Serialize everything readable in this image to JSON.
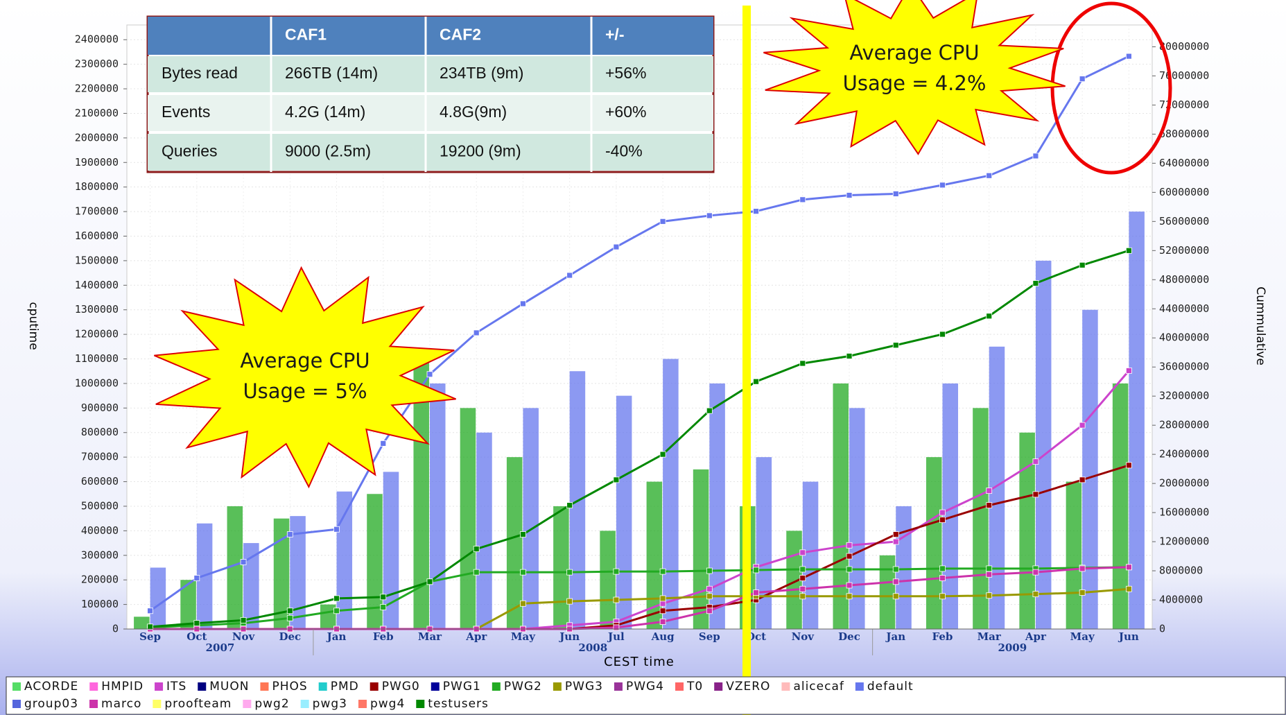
{
  "chart_data": {
    "type": "combo",
    "y_label": "cputime",
    "y2_label": "Cummulative",
    "x_label": "CEST time",
    "categories": [
      "Sep",
      "Oct",
      "Nov",
      "Dec",
      "Jan",
      "Feb",
      "Mar",
      "Apr",
      "May",
      "Jun",
      "Jul",
      "Aug",
      "Sep",
      "Oct",
      "Nov",
      "Dec",
      "Jan",
      "Feb",
      "Mar",
      "Apr",
      "May",
      "Jun"
    ],
    "years": [
      "2007",
      "2008",
      "2009"
    ],
    "year_months": [
      4,
      12,
      6
    ],
    "ylim": [
      0,
      2460000
    ],
    "yticks": [
      0,
      100000,
      200000,
      300000,
      400000,
      500000,
      600000,
      700000,
      800000,
      900000,
      1000000,
      1100000,
      1200000,
      1300000,
      1400000,
      1500000,
      1600000,
      1700000,
      1800000,
      1900000,
      2000000,
      2100000,
      2200000,
      2300000,
      2400000
    ],
    "y2lim": [
      0,
      83000000
    ],
    "y2ticks": [
      0,
      4000000,
      8000000,
      12000000,
      16000000,
      20000000,
      24000000,
      28000000,
      32000000,
      36000000,
      40000000,
      44000000,
      48000000,
      52000000,
      56000000,
      60000000,
      64000000,
      68000000,
      72000000,
      76000000,
      80000000
    ],
    "grid": true,
    "series": [
      {
        "name": "ACORDE",
        "color": "#55dd66"
      },
      {
        "name": "HMPID",
        "color": "#ff66dd"
      },
      {
        "name": "ITS",
        "color": "#cc44cc",
        "axis": "y2",
        "values": [
          0,
          0,
          0,
          0,
          0,
          0,
          0,
          0,
          0,
          500000,
          1000000,
          3500000,
          5500000,
          8500000,
          10500000,
          11500000,
          12000000,
          16000000,
          19000000,
          23000000,
          28000000,
          35500000
        ]
      },
      {
        "name": "MUON",
        "color": "#000080"
      },
      {
        "name": "PHOS",
        "color": "#ff7755"
      },
      {
        "name": "PMD",
        "color": "#22cccc"
      },
      {
        "name": "PWG0",
        "color": "#990000",
        "axis": "y2",
        "values": [
          0,
          0,
          0,
          0,
          0,
          0,
          0,
          0,
          0,
          0,
          500000,
          2500000,
          3000000,
          4000000,
          7000000,
          10000000,
          13000000,
          15000000,
          17000000,
          18500000,
          20500000,
          22500000
        ]
      },
      {
        "name": "PWG1",
        "color": "#000099"
      },
      {
        "name": "PWG2",
        "color": "#22aa22",
        "axis": "y2",
        "values": [
          200000,
          500000,
          800000,
          1500000,
          2500000,
          3000000,
          6500000,
          7800000,
          7800000,
          7800000,
          7900000,
          7900000,
          8000000,
          8100000,
          8200000,
          8200000,
          8200000,
          8300000,
          8300000,
          8300000,
          8400000,
          8500000
        ],
        "bars": [
          50000,
          200000,
          500000,
          450000,
          100000,
          550000,
          1100000,
          900000,
          700000,
          500000,
          400000,
          600000,
          650000,
          500000,
          400000,
          1000000,
          300000,
          700000,
          900000,
          800000,
          600000,
          1000000
        ]
      },
      {
        "name": "PWG3",
        "color": "#999900",
        "axis": "y2",
        "values": [
          0,
          0,
          0,
          0,
          0,
          0,
          0,
          0,
          3500000,
          3800000,
          4000000,
          4200000,
          4500000,
          4500000,
          4500000,
          4500000,
          4500000,
          4500000,
          4600000,
          4800000,
          5000000,
          5500000
        ]
      },
      {
        "name": "PWG4",
        "color": "#993399"
      },
      {
        "name": "T0",
        "color": "#ff6666"
      },
      {
        "name": "VZERO",
        "color": "#882288"
      },
      {
        "name": "alicecaf",
        "color": "#ffbbbb"
      },
      {
        "name": "default",
        "color": "#6677ee",
        "axis": "y2",
        "values": [
          2500000,
          7000000,
          9200000,
          13000000,
          13700000,
          25500000,
          35000000,
          40700000,
          44700000,
          48600000,
          52500000,
          56000000,
          56800000,
          57400000,
          59000000,
          59600000,
          59800000,
          61000000,
          62300000,
          65000000,
          75600000,
          78700000
        ],
        "bars": [
          250000,
          430000,
          350000,
          460000,
          560000,
          640000,
          1000000,
          800000,
          900000,
          1050000,
          950000,
          1100000,
          1000000,
          700000,
          600000,
          900000,
          500000,
          1000000,
          1150000,
          1500000,
          1300000,
          1700000
        ]
      },
      {
        "name": "group03",
        "color": "#5566dd"
      },
      {
        "name": "marco",
        "color": "#cc33aa",
        "axis": "y2",
        "values": [
          0,
          0,
          0,
          0,
          0,
          0,
          0,
          0,
          0,
          0,
          200000,
          1000000,
          2500000,
          5000000,
          5500000,
          6000000,
          6500000,
          7000000,
          7500000,
          7800000,
          8300000,
          8500000
        ]
      },
      {
        "name": "proofteam",
        "color": "#ffff66"
      },
      {
        "name": "pwg2",
        "color": "#ffaaee"
      },
      {
        "name": "pwg3",
        "color": "#99eeff"
      },
      {
        "name": "pwg4",
        "color": "#ff7766"
      },
      {
        "name": "testusers",
        "color": "#008800",
        "axis": "y2",
        "values": [
          300000,
          800000,
          1200000,
          2500000,
          4200000,
          4400000,
          6500000,
          11000000,
          13000000,
          17000000,
          20500000,
          24000000,
          30000000,
          34000000,
          36500000,
          37500000,
          39000000,
          40500000,
          43000000,
          47500000,
          50000000,
          52000000
        ]
      }
    ],
    "annotations": [
      {
        "lines": [
          "Average CPU",
          "Usage = 5%"
        ]
      },
      {
        "lines": [
          "Average CPU",
          "Usage = 4.2%"
        ]
      }
    ]
  },
  "table": {
    "columns": [
      "CAF1",
      "CAF2",
      "+/-"
    ],
    "rows": [
      [
        "Bytes read",
        "266TB (14m)",
        "234TB (9m)",
        "+56%"
      ],
      [
        "Events",
        "4.2G (14m)",
        "4.8G(9m)",
        "+60%"
      ],
      [
        "Queries",
        "9000 (2.5m)",
        "19200 (9m)",
        "-40%"
      ]
    ]
  }
}
